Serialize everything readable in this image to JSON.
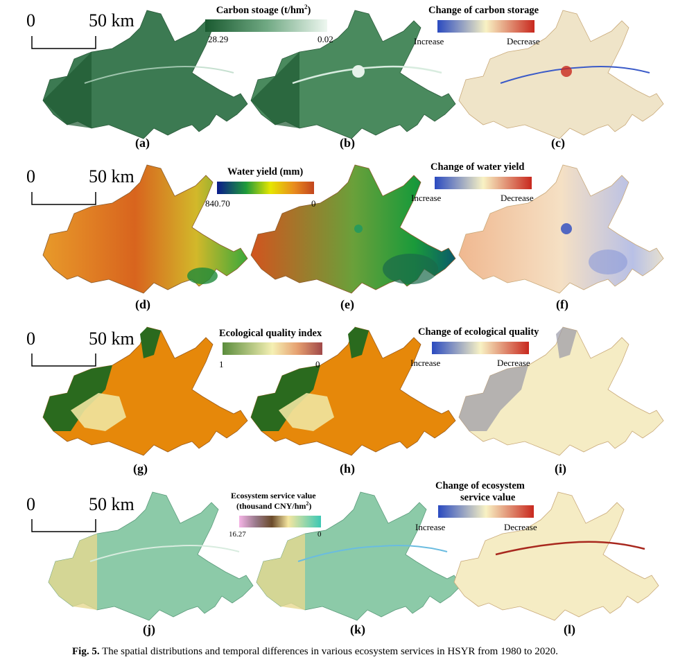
{
  "scale_bar": {
    "zero": "0",
    "distance": "50 km"
  },
  "panel_labels": [
    "(a)",
    "(b)",
    "(c)",
    "(d)",
    "(e)",
    "(f)",
    "(g)",
    "(h)",
    "(i)",
    "(j)",
    "(k)",
    "(l)"
  ],
  "legends": {
    "carbon": {
      "title_main": "Carbon stoage (t/hm",
      "title_sup": "2",
      "title_end": ")",
      "min_label": "28.29",
      "max_label": "0.02"
    },
    "carbon_change": {
      "title": "Change of carbon storage",
      "left": "Increase",
      "right": "Decrease"
    },
    "water": {
      "title": "Water yield (mm)",
      "min_label": "840.70",
      "max_label": "0"
    },
    "water_change": {
      "title": "Change of water yield",
      "left": "Increase",
      "right": "Decrease"
    },
    "eco": {
      "title": "Ecological quality index",
      "min_label": "1",
      "max_label": "0"
    },
    "eco_change": {
      "title": "Change of ecological quality",
      "left": "Increase",
      "right": "Decrease"
    },
    "esv": {
      "title_line1": "Ecosystem service value",
      "title_line2_main": "(thousand CNY/hm",
      "title_line2_sup": "2",
      "title_line2_end": ")",
      "min_label": "16.27",
      "max_label": "0"
    },
    "esv_change": {
      "title_line1": "Change of ecosystem",
      "title_line2": "service value",
      "left": "Increase",
      "right": "Decrease"
    }
  },
  "colors": {
    "carbon_dark": "#1e5a32",
    "carbon_light": "#e6f2ea",
    "water_ramp": [
      "#0a1a8c",
      "#2a9a3a",
      "#e6e600",
      "#e07a1a",
      "#c2451e"
    ],
    "eco_ramp": [
      "#5a8c3c",
      "#f5f0b4",
      "#e0a070",
      "#a84a4a"
    ],
    "esv_ramp": [
      "#f0a0d8",
      "#8c6a4a",
      "#f5e6a0",
      "#4ac8b4"
    ],
    "change_ramp": [
      "#2a4ac0",
      "#f5f0c0",
      "#c82a20"
    ]
  },
  "caption": {
    "label": "Fig. 5.",
    "text": "The spatial distributions and temporal differences in various ecosystem services in HSYR from 1980 to 2020."
  }
}
